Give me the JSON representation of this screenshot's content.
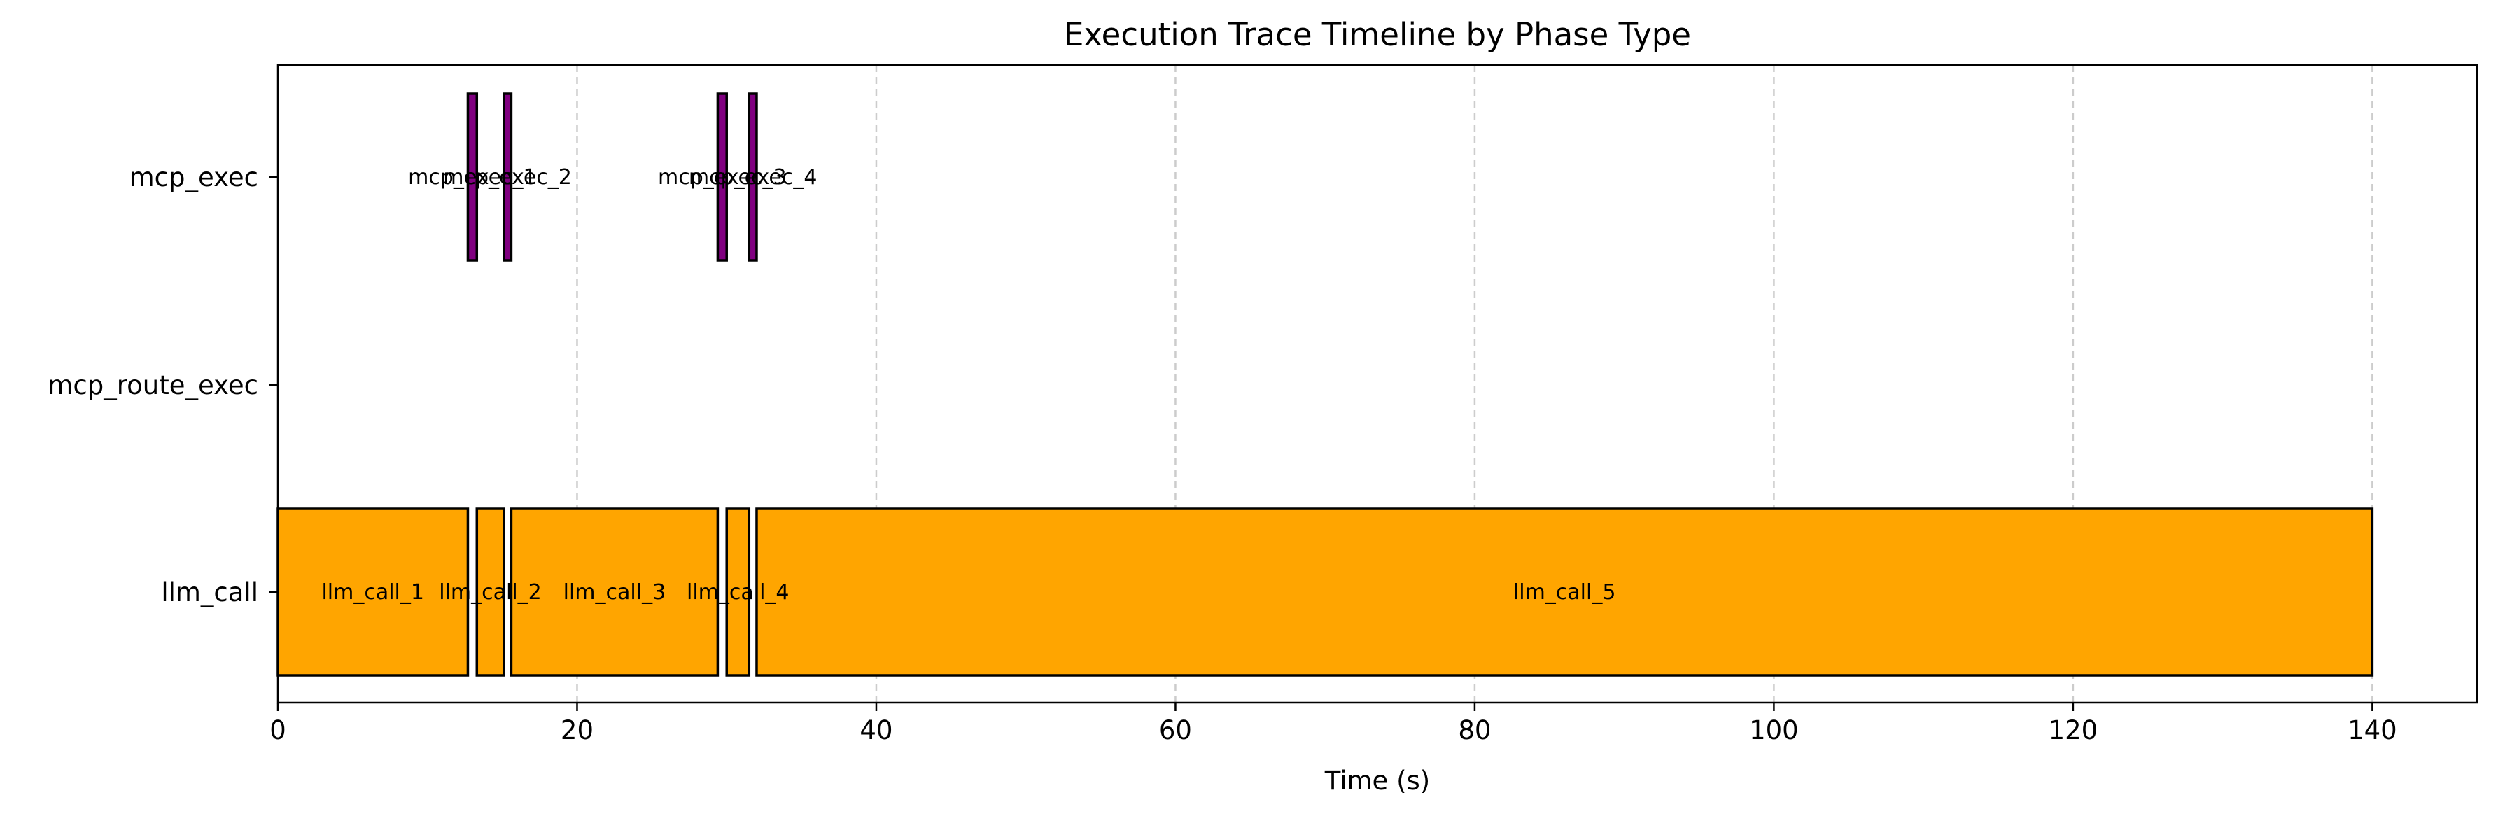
{
  "chart_data": {
    "type": "gantt",
    "title": "Execution Trace Timeline by Phase Type",
    "xlabel": "Time (s)",
    "ylabel": "",
    "xlim": [
      0,
      147
    ],
    "xticks": [
      0,
      20,
      40,
      60,
      80,
      100,
      120,
      140
    ],
    "grid": "x-dashed",
    "categories": [
      "mcp_exec",
      "mcp_route_exec",
      "llm_call"
    ],
    "colors": {
      "llm_call": "#ffa500",
      "mcp_exec": "#800080",
      "mcp_route_exec": "#1f77b4",
      "edge": "#000000"
    },
    "bars": [
      {
        "label": "llm_call_1",
        "category": "llm_call",
        "start": 0.0,
        "end": 12.7
      },
      {
        "label": "llm_call_2",
        "category": "llm_call",
        "start": 13.3,
        "end": 15.1
      },
      {
        "label": "llm_call_3",
        "category": "llm_call",
        "start": 15.6,
        "end": 29.4
      },
      {
        "label": "llm_call_4",
        "category": "llm_call",
        "start": 30.0,
        "end": 31.5
      },
      {
        "label": "llm_call_5",
        "category": "llm_call",
        "start": 32.0,
        "end": 140.0
      },
      {
        "label": "mcp_exec_1",
        "category": "mcp_exec",
        "start": 12.7,
        "end": 13.3
      },
      {
        "label": "mcp_exec_2",
        "category": "mcp_exec",
        "start": 15.1,
        "end": 15.6
      },
      {
        "label": "mcp_exec_3",
        "category": "mcp_exec",
        "start": 29.4,
        "end": 30.0
      },
      {
        "label": "mcp_exec_4",
        "category": "mcp_exec",
        "start": 31.5,
        "end": 32.0
      }
    ]
  }
}
